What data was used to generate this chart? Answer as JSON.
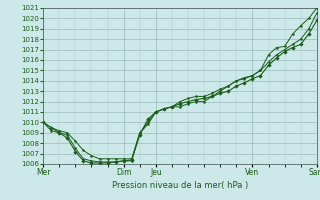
{
  "title": "",
  "xlabel": "Pression niveau de la mer( hPa )",
  "ylim": [
    1006,
    1021
  ],
  "xlim": [
    0,
    17
  ],
  "yticks": [
    1006,
    1007,
    1008,
    1009,
    1010,
    1011,
    1012,
    1013,
    1014,
    1015,
    1016,
    1017,
    1018,
    1019,
    1020,
    1021
  ],
  "bg_color": "#cce8e8",
  "grid_color": "#99bbbb",
  "line_color": "#1a5c1a",
  "xtick_positions": [
    0,
    5,
    7,
    13,
    17
  ],
  "xtick_labels": [
    "Mer",
    "Dim",
    "Jeu",
    "Ven",
    "Sam"
  ],
  "series1_x": [
    0,
    0.5,
    1,
    1.5,
    2,
    2.5,
    3,
    3.5,
    4,
    4.5,
    5,
    5.5,
    6,
    6.5,
    7,
    7.5,
    8,
    8.5,
    9,
    9.5,
    10,
    10.5,
    11,
    11.5,
    12,
    12.5,
    13,
    13.5,
    14,
    14.5,
    15,
    15.5,
    16,
    16.5,
    17
  ],
  "series1_y": [
    1010.0,
    1009.2,
    1009.0,
    1008.8,
    1007.5,
    1006.5,
    1006.3,
    1006.2,
    1006.2,
    1006.2,
    1006.3,
    1006.3,
    1009.0,
    1010.0,
    1011.0,
    1011.3,
    1011.5,
    1011.5,
    1011.8,
    1012.0,
    1012.0,
    1012.5,
    1013.0,
    1013.5,
    1014.0,
    1014.2,
    1014.5,
    1015.0,
    1016.5,
    1017.2,
    1017.3,
    1018.5,
    1019.3,
    1020.0,
    1021.0
  ],
  "series2_x": [
    0,
    0.5,
    1,
    1.5,
    2,
    2.5,
    3,
    3.5,
    4,
    4.5,
    5,
    5.5,
    6,
    6.5,
    7,
    7.5,
    8,
    8.5,
    9,
    9.5,
    10,
    10.5,
    11,
    11.5,
    12,
    12.5,
    13,
    13.5,
    14,
    14.5,
    15,
    15.5,
    16,
    16.5,
    17
  ],
  "series2_y": [
    1010.0,
    1009.5,
    1009.2,
    1009.0,
    1008.2,
    1007.3,
    1006.8,
    1006.5,
    1006.5,
    1006.5,
    1006.5,
    1006.5,
    1009.0,
    1009.8,
    1011.0,
    1011.3,
    1011.5,
    1012.0,
    1012.3,
    1012.5,
    1012.5,
    1012.8,
    1013.2,
    1013.5,
    1014.0,
    1014.3,
    1014.5,
    1015.0,
    1015.8,
    1016.5,
    1017.0,
    1017.5,
    1018.0,
    1019.0,
    1020.5
  ],
  "series3_x": [
    0,
    0.5,
    1,
    1.5,
    2,
    2.5,
    3,
    3.5,
    4,
    4.5,
    5,
    5.5,
    6,
    6.5,
    7,
    7.5,
    8,
    8.5,
    9,
    9.5,
    10,
    10.5,
    11,
    11.5,
    12,
    12.5,
    13,
    13.5,
    14,
    14.5,
    15,
    15.5,
    16,
    16.5,
    17
  ],
  "series3_y": [
    1010.0,
    1009.5,
    1009.0,
    1008.5,
    1007.2,
    1006.3,
    1006.1,
    1006.1,
    1006.1,
    1006.2,
    1006.3,
    1006.4,
    1008.8,
    1010.3,
    1011.0,
    1011.3,
    1011.5,
    1011.8,
    1012.0,
    1012.2,
    1012.3,
    1012.5,
    1012.8,
    1013.0,
    1013.5,
    1013.8,
    1014.2,
    1014.5,
    1015.5,
    1016.2,
    1016.8,
    1017.2,
    1017.5,
    1018.5,
    1019.8
  ]
}
